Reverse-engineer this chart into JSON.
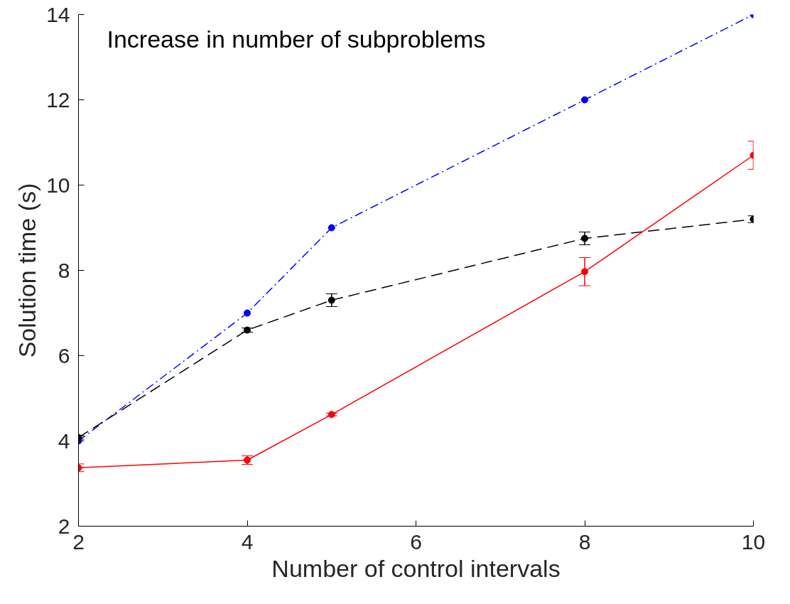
{
  "chart_data": {
    "type": "line",
    "xlabel": "Number of control intervals",
    "ylabel": "Solution time (s)",
    "x": [
      2,
      4,
      5,
      8,
      10
    ],
    "series": [
      {
        "color": "#0000ff",
        "values": [
          4.0,
          7.0,
          9.0,
          12.0,
          14.0
        ],
        "line_style": "dashdot"
      },
      {
        "color": "#000000",
        "values": [
          4.08,
          6.6,
          7.3,
          8.75,
          9.2
        ],
        "errors": [
          0.04,
          0.05,
          0.15,
          0.15,
          0.08
        ],
        "line_style": "dashed"
      },
      {
        "color": "#ff0000",
        "values": [
          3.37,
          3.55,
          4.62,
          7.97,
          10.7
        ],
        "errors": [
          0.09,
          0.1,
          0.03,
          0.33,
          0.33
        ],
        "line_style": "solid"
      }
    ],
    "xlim": [
      2,
      10
    ],
    "ylim": [
      2,
      14
    ],
    "xticks": [
      2,
      4,
      6,
      8,
      10
    ],
    "yticks": [
      2,
      4,
      6,
      8,
      10,
      12,
      14
    ],
    "marker": "circle",
    "grid": false,
    "annotations": [
      "Increase in number of subproblems"
    ]
  }
}
